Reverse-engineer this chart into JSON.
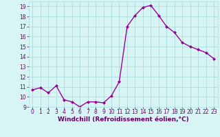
{
  "x": [
    0,
    1,
    2,
    3,
    4,
    5,
    6,
    7,
    8,
    9,
    10,
    11,
    12,
    13,
    14,
    15,
    16,
    17,
    18,
    19,
    20,
    21,
    22,
    23
  ],
  "y": [
    10.7,
    10.9,
    10.4,
    11.1,
    9.7,
    9.5,
    9.0,
    9.5,
    9.5,
    9.4,
    10.1,
    11.5,
    17.0,
    18.1,
    18.9,
    19.1,
    18.1,
    17.0,
    16.4,
    15.4,
    15.0,
    14.7,
    14.4,
    13.8
  ],
  "line_color": "#990099",
  "marker": "D",
  "marker_size": 2,
  "bg_color": "#d8f5f5",
  "grid_color": "#aadddd",
  "xlabel": "Windchill (Refroidissement éolien,°C)",
  "ylabel": "",
  "title": "",
  "xlim": [
    -0.5,
    23.5
  ],
  "ylim": [
    9,
    19.5
  ],
  "yticks": [
    9,
    10,
    11,
    12,
    13,
    14,
    15,
    16,
    17,
    18,
    19
  ],
  "xticks": [
    0,
    1,
    2,
    3,
    4,
    5,
    6,
    7,
    8,
    9,
    10,
    11,
    12,
    13,
    14,
    15,
    16,
    17,
    18,
    19,
    20,
    21,
    22,
    23
  ],
  "tick_color": "#660066",
  "label_color": "#660066",
  "label_fontsize": 6.5,
  "tick_fontsize": 5.5,
  "linewidth": 1.0
}
